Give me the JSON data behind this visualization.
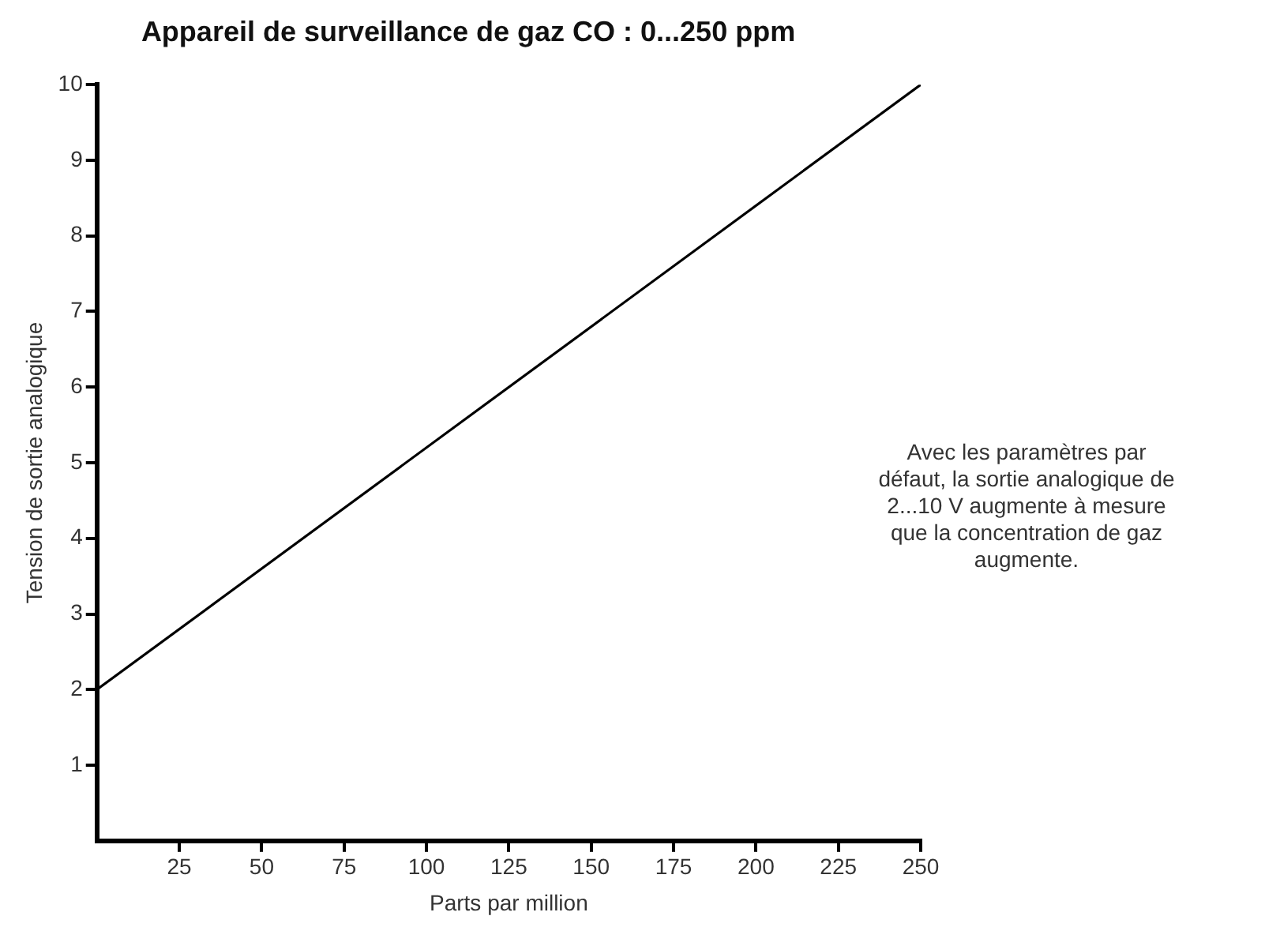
{
  "chart_data": {
    "type": "line",
    "title": "Appareil de surveillance de gaz CO : 0...250 ppm",
    "xlabel": "Parts par million",
    "ylabel": "Tension de sortie analogique",
    "annotations": [
      "Avec les paramètres par défaut, la sortie analogique de 2...10 V augmente à mesure que la concentration de gaz augmente."
    ],
    "series": [
      {
        "color": "#000000",
        "x": [
          0,
          250
        ],
        "values": [
          2,
          10
        ]
      }
    ],
    "xlim": [
      0,
      250
    ],
    "xticks": [
      25,
      50,
      75,
      100,
      125,
      150,
      175,
      200,
      225,
      250
    ],
    "ylim": [
      0,
      10
    ],
    "yticks": [
      1,
      2,
      3,
      4,
      5,
      6,
      7,
      8,
      9,
      10
    ],
    "grid": false,
    "legend": false,
    "marker": "none",
    "line_style": "solid"
  }
}
